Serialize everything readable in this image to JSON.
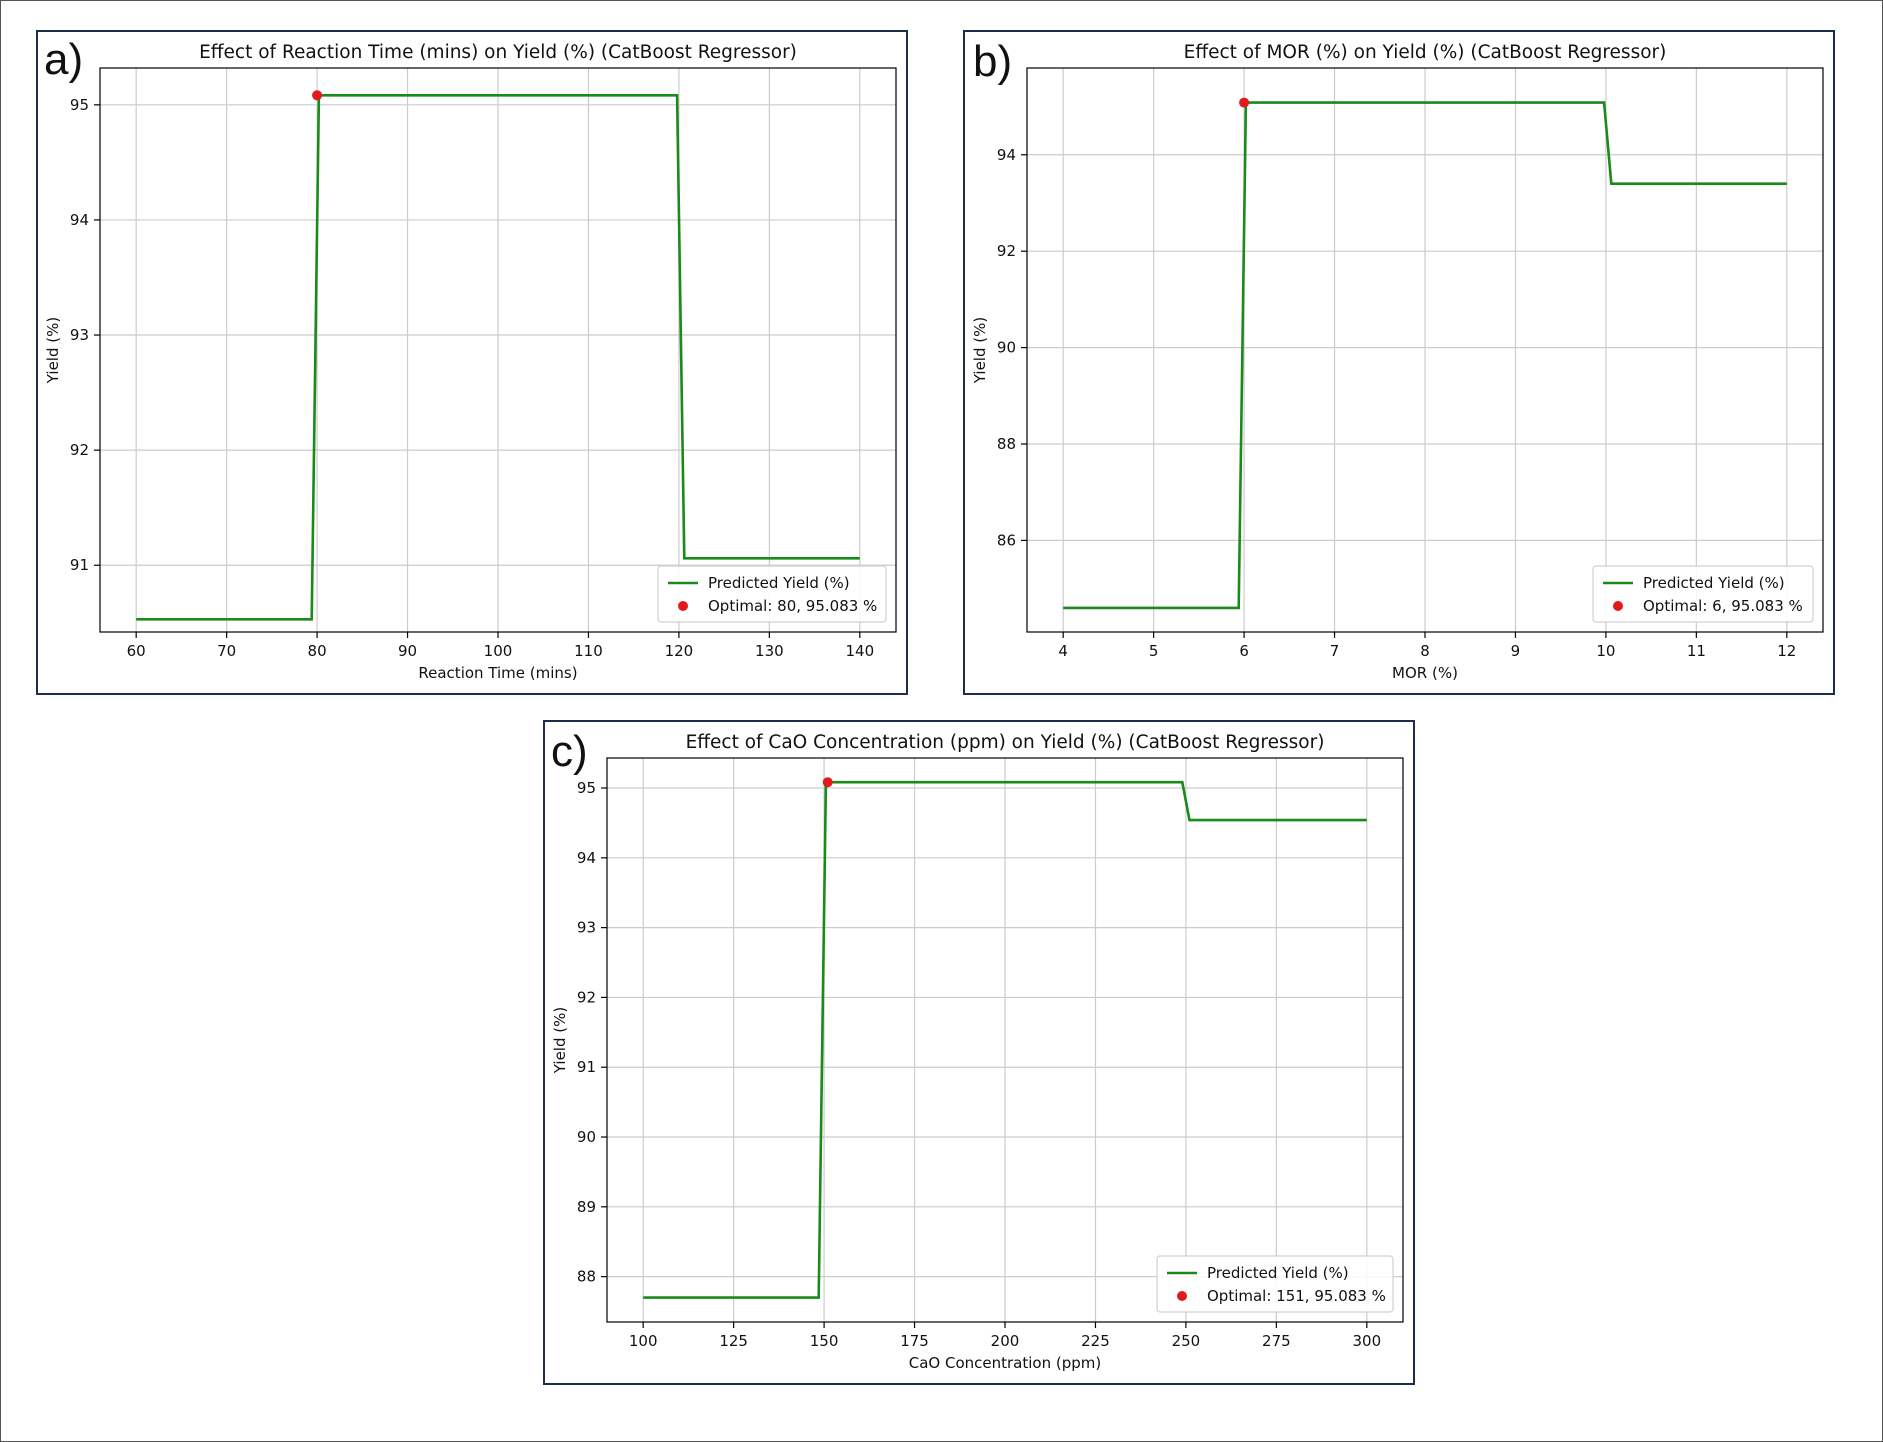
{
  "colors": {
    "line": "#1a8a1a",
    "optimal_marker": "#e31a1c",
    "grid": "#cccccc",
    "axes": "#000000",
    "panel_border": "#1f2d4d"
  },
  "panels": [
    {
      "letter": "a)"
    },
    {
      "letter": "b)"
    },
    {
      "letter": "c)"
    }
  ],
  "chart_data": [
    {
      "type": "line",
      "title": "Effect of Reaction Time (mins) on Yield (%) (CatBoost Regressor)",
      "xlabel": "Reaction Time (mins)",
      "ylabel": "Yield (%)",
      "xlim": [
        56,
        144
      ],
      "ylim": [
        90.42,
        95.32
      ],
      "xticks": [
        60,
        70,
        80,
        90,
        100,
        110,
        120,
        130,
        140
      ],
      "yticks": [
        91,
        92,
        93,
        94,
        95
      ],
      "grid": true,
      "legend_position": "lower right",
      "series": [
        {
          "name": "Predicted Yield (%)",
          "x": [
            60,
            79.4,
            80.2,
            119.8,
            120.6,
            140
          ],
          "y": [
            90.53,
            90.53,
            95.083,
            95.083,
            91.06,
            91.06
          ]
        }
      ],
      "optimal": {
        "label": "Optimal: 80, 95.083 %",
        "x": 80,
        "y": 95.083
      }
    },
    {
      "type": "line",
      "title": "Effect of MOR (%) on Yield (%) (CatBoost Regressor)",
      "xlabel": "MOR (%)",
      "ylabel": "Yield (%)",
      "xlim": [
        3.6,
        12.4
      ],
      "ylim": [
        84.1,
        95.8
      ],
      "xticks": [
        4,
        5,
        6,
        7,
        8,
        9,
        10,
        11,
        12
      ],
      "yticks": [
        86,
        88,
        90,
        92,
        94
      ],
      "grid": true,
      "legend_position": "lower right",
      "series": [
        {
          "name": "Predicted Yield (%)",
          "x": [
            4,
            5.94,
            6.02,
            9.98,
            10.06,
            12
          ],
          "y": [
            84.6,
            84.6,
            95.083,
            95.083,
            93.4,
            93.4
          ]
        }
      ],
      "optimal": {
        "label": "Optimal: 6, 95.083 %",
        "x": 6,
        "y": 95.083
      }
    },
    {
      "type": "line",
      "title": "Effect of CaO Concentration (ppm) on Yield (%) (CatBoost Regressor)",
      "xlabel": "CaO Concentration (ppm)",
      "ylabel": "Yield (%)",
      "xlim": [
        90,
        310
      ],
      "ylim": [
        87.35,
        95.43
      ],
      "xticks": [
        100,
        125,
        150,
        175,
        200,
        225,
        250,
        275,
        300
      ],
      "yticks": [
        88,
        89,
        90,
        91,
        92,
        93,
        94,
        95
      ],
      "grid": true,
      "legend_position": "lower right",
      "series": [
        {
          "name": "Predicted Yield (%)",
          "x": [
            100,
            148.5,
            150.5,
            249,
            251,
            300
          ],
          "y": [
            87.7,
            87.7,
            95.083,
            95.083,
            94.54,
            94.54
          ]
        }
      ],
      "optimal": {
        "label": "Optimal: 151, 95.083 %",
        "x": 151,
        "y": 95.083
      }
    }
  ]
}
